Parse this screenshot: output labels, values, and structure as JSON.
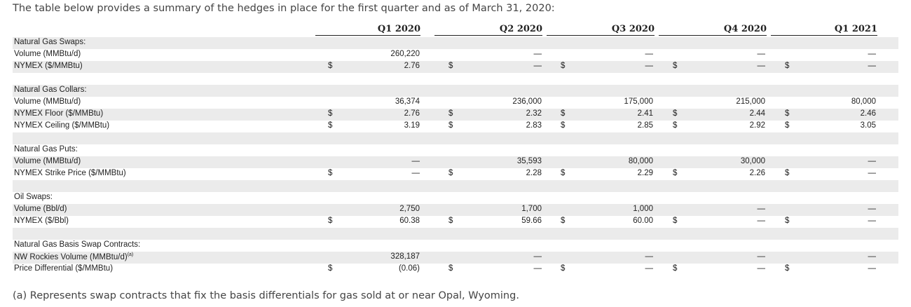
{
  "intro": "The table below provides a summary of the hedges in place for the first quarter and as of March 31, 2020:",
  "footnote": "(a) Represents swap contracts that fix the basis differentials for gas sold at or near Opal, Wyoming.",
  "columns": [
    "Q1 2020",
    "Q2 2020",
    "Q3 2020",
    "Q4 2020",
    "Q1 2021"
  ],
  "currency_symbol": "$",
  "rows": [
    {
      "label": "Natural Gas Swaps:",
      "shade": true,
      "dollar": false,
      "values": [
        "",
        "",
        "",
        "",
        ""
      ]
    },
    {
      "label": "Volume (MMBtu/d)",
      "shade": false,
      "dollar": false,
      "values": [
        "260,220",
        "—",
        "—",
        "—",
        "—"
      ]
    },
    {
      "label": "NYMEX ($/MMBtu)",
      "shade": true,
      "dollar": true,
      "values": [
        "2.76",
        "—",
        "—",
        "—",
        "—"
      ]
    },
    {
      "label": "",
      "shade": false,
      "dollar": false,
      "values": [
        "",
        "",
        "",
        "",
        ""
      ]
    },
    {
      "label": "Natural Gas Collars:",
      "shade": true,
      "dollar": false,
      "values": [
        "",
        "",
        "",
        "",
        ""
      ]
    },
    {
      "label": "Volume (MMBtu/d)",
      "shade": false,
      "dollar": false,
      "values": [
        "36,374",
        "236,000",
        "175,000",
        "215,000",
        "80,000"
      ]
    },
    {
      "label": "NYMEX Floor ($/MMBtu)",
      "shade": true,
      "dollar": true,
      "values": [
        "2.76",
        "2.32",
        "2.41",
        "2.44",
        "2.46"
      ]
    },
    {
      "label": "NYMEX Ceiling ($/MMBtu)",
      "shade": false,
      "dollar": true,
      "values": [
        "3.19",
        "2.83",
        "2.85",
        "2.92",
        "3.05"
      ]
    },
    {
      "label": "",
      "shade": true,
      "dollar": false,
      "values": [
        "",
        "",
        "",
        "",
        ""
      ]
    },
    {
      "label": "Natural Gas Puts:",
      "shade": false,
      "dollar": false,
      "values": [
        "",
        "",
        "",
        "",
        ""
      ]
    },
    {
      "label": "Volume (MMBtu/d)",
      "shade": true,
      "dollar": false,
      "values": [
        "—",
        "35,593",
        "80,000",
        "30,000",
        "—"
      ]
    },
    {
      "label": "NYMEX Strike Price ($/MMBtu)",
      "shade": false,
      "dollar": true,
      "values": [
        "—",
        "2.28",
        "2.29",
        "2.26",
        "—"
      ]
    },
    {
      "label": "",
      "shade": true,
      "dollar": false,
      "values": [
        "",
        "",
        "",
        "",
        ""
      ]
    },
    {
      "label": "Oil Swaps:",
      "shade": false,
      "dollar": false,
      "values": [
        "",
        "",
        "",
        "",
        ""
      ]
    },
    {
      "label": "Volume (Bbl/d)",
      "shade": true,
      "dollar": false,
      "values": [
        "2,750",
        "1,700",
        "1,000",
        "—",
        "—"
      ]
    },
    {
      "label": "NYMEX ($/Bbl)",
      "shade": false,
      "dollar": true,
      "values": [
        "60.38",
        "59.66",
        "60.00",
        "—",
        "—"
      ]
    },
    {
      "label": "",
      "shade": true,
      "dollar": false,
      "values": [
        "",
        "",
        "",
        "",
        ""
      ]
    },
    {
      "label": "Natural Gas Basis Swap Contracts:",
      "shade": false,
      "dollar": false,
      "values": [
        "",
        "",
        "",
        "",
        ""
      ]
    },
    {
      "label": "NW Rockies Volume (MMBtu/d)",
      "sup": "(a)",
      "shade": true,
      "dollar": false,
      "values": [
        "328,187",
        "—",
        "—",
        "—",
        "—"
      ]
    },
    {
      "label": "Price Differential ($/MMBtu)",
      "shade": false,
      "dollar": true,
      "values": [
        "(0.06)",
        "—",
        "—",
        "—",
        "—"
      ]
    }
  ]
}
